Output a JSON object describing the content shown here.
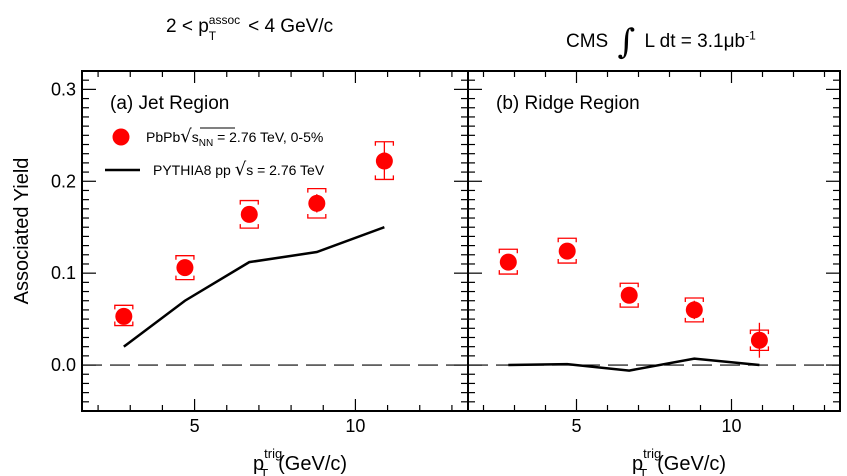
{
  "header": {
    "left": {
      "pre": "2 < p",
      "sup": "assoc",
      "sub": "T",
      "post": " < 4 GeV/c"
    },
    "right": {
      "experiment": "CMS",
      "integral": "∫",
      "lumi": "L dt = 3.1μb",
      "lumi_sup": "-1"
    }
  },
  "chart_data": [
    {
      "type": "scatter",
      "panel_label": "(a) Jet Region",
      "xlabel": {
        "main": "p",
        "sup": "trig",
        "sub": "T",
        "unit": "(GeV/c)"
      },
      "ylabel": "Associated Yield",
      "xlim": [
        1.5,
        13.5
      ],
      "ylim": [
        -0.05,
        0.32
      ],
      "x_ticks": [
        5,
        10
      ],
      "y_ticks": [
        0.0,
        0.1,
        0.2,
        0.3
      ],
      "y_tick_labels": [
        "0.0",
        "0.1",
        "0.2",
        "0.3"
      ],
      "zero_line": "dashed",
      "legend": {
        "position": "top-left",
        "entries": [
          {
            "marker": "red-circle",
            "label": "PbPb",
            "sqrt": "s",
            "sqrt_sub": "NN",
            "rest": " = 2.76 TeV, 0-5%"
          },
          {
            "marker": "black-line",
            "label": "PYTHIA8 pp ",
            "sqrt": "s",
            "rest": " = 2.76 TeV"
          }
        ]
      },
      "series": [
        {
          "name": "PbPb √sNN = 2.76 TeV, 0-5%",
          "color": "#ff0000",
          "points": [
            {
              "x": 2.8,
              "y": 0.053,
              "syst_low": 0.043,
              "syst_high": 0.065,
              "stat_low": 0.048,
              "stat_high": 0.058
            },
            {
              "x": 4.7,
              "y": 0.106,
              "syst_low": 0.093,
              "syst_high": 0.119,
              "stat_low": 0.1,
              "stat_high": 0.112
            },
            {
              "x": 6.7,
              "y": 0.164,
              "syst_low": 0.149,
              "syst_high": 0.179,
              "stat_low": 0.156,
              "stat_high": 0.172
            },
            {
              "x": 8.8,
              "y": 0.176,
              "syst_low": 0.16,
              "syst_high": 0.192,
              "stat_low": 0.166,
              "stat_high": 0.186
            },
            {
              "x": 10.9,
              "y": 0.222,
              "syst_low": 0.202,
              "syst_high": 0.243,
              "stat_low": 0.202,
              "stat_high": 0.243
            }
          ]
        },
        {
          "name": "PYTHIA8 pp √s = 2.76 TeV",
          "color": "#000000",
          "line": [
            [
              2.8,
              0.02
            ],
            [
              4.7,
              0.07
            ],
            [
              6.7,
              0.112
            ],
            [
              8.8,
              0.123
            ],
            [
              10.9,
              0.15
            ]
          ]
        }
      ]
    },
    {
      "type": "scatter",
      "panel_label": "(b) Ridge Region",
      "xlabel": {
        "main": "p",
        "sup": "trig",
        "sub": "T",
        "unit": "(GeV/c)"
      },
      "xlim": [
        1.5,
        13.5
      ],
      "ylim": [
        -0.05,
        0.32
      ],
      "x_ticks": [
        5,
        10
      ],
      "zero_line": "dashed",
      "series": [
        {
          "name": "PbPb √sNN = 2.76 TeV, 0-5%",
          "color": "#ff0000",
          "points": [
            {
              "x": 2.8,
              "y": 0.112,
              "syst_low": 0.099,
              "syst_high": 0.126,
              "stat_low": 0.106,
              "stat_high": 0.118
            },
            {
              "x": 4.7,
              "y": 0.124,
              "syst_low": 0.111,
              "syst_high": 0.138,
              "stat_low": 0.118,
              "stat_high": 0.13
            },
            {
              "x": 6.7,
              "y": 0.076,
              "syst_low": 0.063,
              "syst_high": 0.089,
              "stat_low": 0.068,
              "stat_high": 0.084
            },
            {
              "x": 8.8,
              "y": 0.06,
              "syst_low": 0.047,
              "syst_high": 0.073,
              "stat_low": 0.05,
              "stat_high": 0.07
            },
            {
              "x": 10.9,
              "y": 0.027,
              "syst_low": 0.016,
              "syst_high": 0.038,
              "stat_low": 0.008,
              "stat_high": 0.046
            }
          ]
        },
        {
          "name": "PYTHIA8 pp √s = 2.76 TeV",
          "color": "#000000",
          "line": [
            [
              2.8,
              0.0
            ],
            [
              4.7,
              0.001
            ],
            [
              6.7,
              -0.006
            ],
            [
              8.8,
              0.007
            ],
            [
              10.9,
              0.0
            ]
          ]
        }
      ]
    }
  ]
}
